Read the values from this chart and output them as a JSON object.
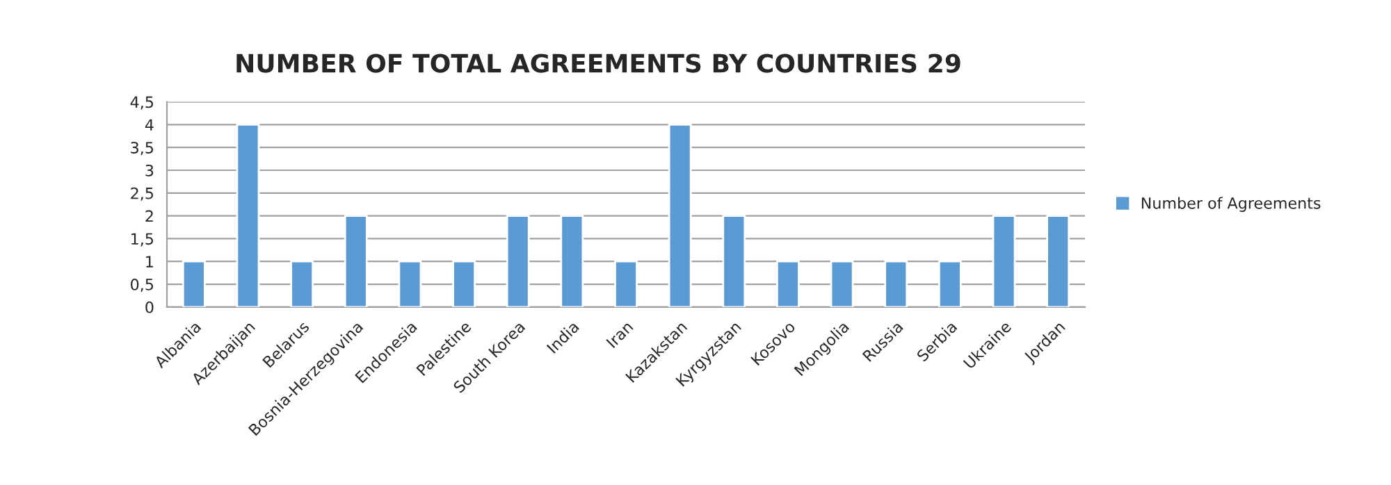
{
  "chart_data": {
    "type": "bar",
    "title": "NUMBER OF TOTAL AGREEMENTS BY COUNTRIES 29",
    "categories": [
      "Albania",
      "Azerbaijan",
      "Belarus",
      "Bosnia-Herzegovina",
      "Endonesia",
      "Palestine",
      "South Korea",
      "India",
      "Iran",
      "Kazakstan",
      "Kyrgyzstan",
      "Kosovo",
      "Mongolia",
      "Russia",
      "Serbia",
      "Ukraine",
      "Jordan"
    ],
    "series": [
      {
        "name": "Number of Agreements",
        "color": "#5b9bd5",
        "values": [
          1,
          4,
          1,
          2,
          1,
          1,
          2,
          2,
          1,
          4,
          2,
          1,
          1,
          1,
          1,
          2,
          2
        ]
      }
    ],
    "ylim": [
      0,
      4.5
    ],
    "yticks": [
      0,
      {
        "value": 0.5,
        "label": "0,5"
      },
      1,
      {
        "value": 1.5,
        "label": "1,5"
      },
      2,
      {
        "value": 2.5,
        "label": "2,5"
      },
      3,
      {
        "value": 3.5,
        "label": "3,5"
      },
      4,
      {
        "value": 4.5,
        "label": "4,5"
      }
    ],
    "grid": "y",
    "legend": "right"
  }
}
